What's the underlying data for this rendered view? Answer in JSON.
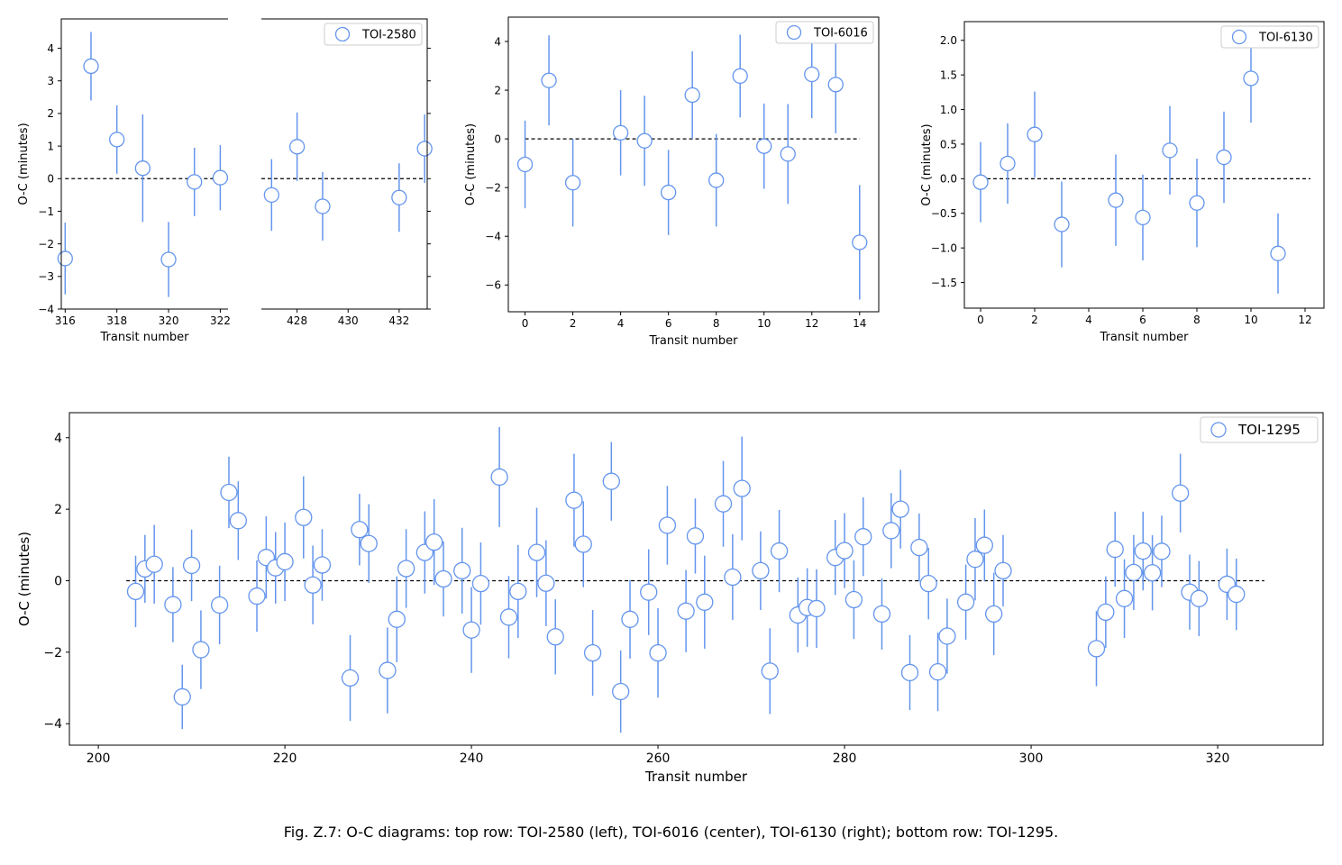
{
  "caption": "Fig. Z.7: O-C diagrams: top row: TOI-2580 (left), TOI-6016 (center), TOI-6130 (right); bottom row: TOI-1295.",
  "colors": {
    "marker": "#6495ED",
    "axis": "#000000",
    "reference_line": "#000000"
  },
  "chart_data": [
    {
      "type": "scatter",
      "panel": "top-left",
      "broken_x_axis": true,
      "legend": {
        "label": "TOI-2580",
        "placement": "top-right"
      },
      "xlabel": "Transit number",
      "ylabel": "O-C (minutes)",
      "ylim": [
        -4.0,
        4.9
      ],
      "yticks": [
        -4,
        -3,
        -2,
        -1,
        0,
        1,
        2,
        3,
        4
      ],
      "segments": [
        {
          "xlim": [
            315.85,
            322.3
          ],
          "xticks": [
            316,
            318,
            320,
            322
          ]
        },
        {
          "xlim": [
            426.6,
            433.1
          ],
          "xticks": [
            428,
            430,
            432
          ]
        }
      ],
      "reference_line": {
        "y": 0,
        "x_range": [
          316,
          433
        ]
      },
      "series": [
        {
          "points": [
            {
              "x": 316,
              "y": -2.45,
              "err": 1.1
            },
            {
              "x": 317,
              "y": 3.45,
              "err": 1.05
            },
            {
              "x": 318,
              "y": 1.2,
              "err": 1.05
            },
            {
              "x": 319,
              "y": 0.32,
              "err": 1.65
            },
            {
              "x": 320,
              "y": -2.48,
              "err": 1.15
            },
            {
              "x": 321,
              "y": -0.1,
              "err": 1.05
            },
            {
              "x": 322,
              "y": 0.03,
              "err": 1.0
            },
            {
              "x": 427,
              "y": -0.5,
              "err": 1.1
            },
            {
              "x": 428,
              "y": 0.98,
              "err": 1.05
            },
            {
              "x": 429,
              "y": -0.85,
              "err": 1.05
            },
            {
              "x": 432,
              "y": -0.58,
              "err": 1.05
            },
            {
              "x": 433,
              "y": 0.92,
              "err": 1.05
            }
          ]
        }
      ]
    },
    {
      "type": "scatter",
      "panel": "top-center",
      "legend": {
        "label": "TOI-6016",
        "placement": "top-right"
      },
      "xlabel": "Transit number",
      "ylabel": "O-C (minutes)",
      "xlim": [
        -0.7,
        14.8
      ],
      "ylim": [
        -7.1,
        5.0
      ],
      "xticks": [
        0,
        2,
        4,
        6,
        8,
        10,
        12,
        14
      ],
      "yticks": [
        -6,
        -4,
        -2,
        0,
        2,
        4
      ],
      "reference_line": {
        "y": 0,
        "x_range": [
          0,
          14
        ]
      },
      "series": [
        {
          "points": [
            {
              "x": 0,
              "y": -1.05,
              "err": 1.8
            },
            {
              "x": 1,
              "y": 2.4,
              "err": 1.85
            },
            {
              "x": 2,
              "y": -1.8,
              "err": 1.8
            },
            {
              "x": 4,
              "y": 0.25,
              "err": 1.75
            },
            {
              "x": 5,
              "y": -0.08,
              "err": 1.85
            },
            {
              "x": 6,
              "y": -2.2,
              "err": 1.75
            },
            {
              "x": 7,
              "y": 1.8,
              "err": 1.8
            },
            {
              "x": 8,
              "y": -1.7,
              "err": 1.9
            },
            {
              "x": 9,
              "y": 2.58,
              "err": 1.7
            },
            {
              "x": 10,
              "y": -0.3,
              "err": 1.75
            },
            {
              "x": 11,
              "y": -0.62,
              "err": 2.05
            },
            {
              "x": 12,
              "y": 2.65,
              "err": 1.8
            },
            {
              "x": 13,
              "y": 2.23,
              "err": 2.0
            },
            {
              "x": 14,
              "y": -4.25,
              "err": 2.35
            }
          ]
        }
      ]
    },
    {
      "type": "scatter",
      "panel": "top-right",
      "legend": {
        "label": "TOI-6130",
        "placement": "top-right"
      },
      "xlabel": "Transit number",
      "ylabel": "O-C (minutes)",
      "xlim": [
        -0.6,
        12.7
      ],
      "ylim": [
        -1.87,
        2.27
      ],
      "xticks": [
        0,
        2,
        4,
        6,
        8,
        10,
        12
      ],
      "yticks": [
        -1.5,
        -1.0,
        -0.5,
        0.0,
        0.5,
        1.0,
        1.5,
        2.0
      ],
      "ytick_labels": [
        "−1.5",
        "−1.0",
        "−0.5",
        "0.0",
        "0.5",
        "1.0",
        "1.5",
        "2.0"
      ],
      "reference_line": {
        "y": 0,
        "x_range": [
          0,
          12.2
        ]
      },
      "series": [
        {
          "points": [
            {
              "x": 0,
              "y": -0.05,
              "err": 0.58
            },
            {
              "x": 1,
              "y": 0.22,
              "err": 0.58
            },
            {
              "x": 2,
              "y": 0.64,
              "err": 0.62
            },
            {
              "x": 3,
              "y": -0.66,
              "err": 0.62
            },
            {
              "x": 5,
              "y": -0.31,
              "err": 0.66
            },
            {
              "x": 6,
              "y": -0.56,
              "err": 0.62
            },
            {
              "x": 7,
              "y": 0.41,
              "err": 0.64
            },
            {
              "x": 8,
              "y": -0.35,
              "err": 0.64
            },
            {
              "x": 9,
              "y": 0.31,
              "err": 0.66
            },
            {
              "x": 10,
              "y": 1.45,
              "err": 0.64
            },
            {
              "x": 11,
              "y": -1.08,
              "err": 0.58
            }
          ]
        }
      ]
    },
    {
      "type": "scatter",
      "panel": "bottom",
      "legend": {
        "label": "TOI-1295",
        "placement": "top-right"
      },
      "xlabel": "Transit number",
      "ylabel": "O-C (minutes)",
      "xlim": [
        196.9,
        331.3
      ],
      "ylim": [
        -4.6,
        4.7
      ],
      "xticks": [
        200,
        220,
        240,
        260,
        280,
        300,
        320
      ],
      "yticks": [
        -4,
        -2,
        0,
        2,
        4
      ],
      "reference_line": {
        "y": 0,
        "x_range": [
          203,
          325
        ]
      },
      "series": [
        {
          "points": [
            {
              "x": 204,
              "y": -0.3,
              "err": 1.0
            },
            {
              "x": 205,
              "y": 0.33,
              "err": 0.95
            },
            {
              "x": 206,
              "y": 0.46,
              "err": 1.1
            },
            {
              "x": 208,
              "y": -0.67,
              "err": 1.05
            },
            {
              "x": 209,
              "y": -3.25,
              "err": 0.9
            },
            {
              "x": 210,
              "y": 0.43,
              "err": 1.0
            },
            {
              "x": 211,
              "y": -1.93,
              "err": 1.1
            },
            {
              "x": 213,
              "y": -0.68,
              "err": 1.1
            },
            {
              "x": 214,
              "y": 2.47,
              "err": 1.0
            },
            {
              "x": 215,
              "y": 1.68,
              "err": 1.1
            },
            {
              "x": 217,
              "y": -0.43,
              "err": 1.0
            },
            {
              "x": 218,
              "y": 0.65,
              "err": 1.15
            },
            {
              "x": 219,
              "y": 0.36,
              "err": 1.0
            },
            {
              "x": 220,
              "y": 0.53,
              "err": 1.1
            },
            {
              "x": 222,
              "y": 1.77,
              "err": 1.15
            },
            {
              "x": 223,
              "y": -0.12,
              "err": 1.1
            },
            {
              "x": 224,
              "y": 0.44,
              "err": 1.0
            },
            {
              "x": 227,
              "y": -2.72,
              "err": 1.2
            },
            {
              "x": 228,
              "y": 1.43,
              "err": 1.0
            },
            {
              "x": 229,
              "y": 1.04,
              "err": 1.1
            },
            {
              "x": 231,
              "y": -2.51,
              "err": 1.2
            },
            {
              "x": 232,
              "y": -1.08,
              "err": 1.2
            },
            {
              "x": 233,
              "y": 0.34,
              "err": 1.1
            },
            {
              "x": 235,
              "y": 0.79,
              "err": 1.15
            },
            {
              "x": 236,
              "y": 1.08,
              "err": 1.2
            },
            {
              "x": 237,
              "y": 0.05,
              "err": 1.05
            },
            {
              "x": 239,
              "y": 0.28,
              "err": 1.2
            },
            {
              "x": 240,
              "y": -1.38,
              "err": 1.2
            },
            {
              "x": 241,
              "y": -0.08,
              "err": 1.15
            },
            {
              "x": 243,
              "y": 2.9,
              "err": 1.4
            },
            {
              "x": 244,
              "y": -1.02,
              "err": 1.15
            },
            {
              "x": 245,
              "y": -0.3,
              "err": 1.3
            },
            {
              "x": 247,
              "y": 0.79,
              "err": 1.25
            },
            {
              "x": 248,
              "y": -0.07,
              "err": 1.2
            },
            {
              "x": 249,
              "y": -1.57,
              "err": 1.05
            },
            {
              "x": 251,
              "y": 2.25,
              "err": 1.3
            },
            {
              "x": 252,
              "y": 1.02,
              "err": 1.2
            },
            {
              "x": 253,
              "y": -2.02,
              "err": 1.2
            },
            {
              "x": 255,
              "y": 2.78,
              "err": 1.1
            },
            {
              "x": 256,
              "y": -3.1,
              "err": 1.15
            },
            {
              "x": 257,
              "y": -1.08,
              "err": 1.1
            },
            {
              "x": 259,
              "y": -0.32,
              "err": 1.2
            },
            {
              "x": 260,
              "y": -2.02,
              "err": 1.25
            },
            {
              "x": 261,
              "y": 1.55,
              "err": 1.1
            },
            {
              "x": 263,
              "y": -0.85,
              "err": 1.15
            },
            {
              "x": 264,
              "y": 1.25,
              "err": 1.05
            },
            {
              "x": 265,
              "y": -0.6,
              "err": 1.3
            },
            {
              "x": 267,
              "y": 2.15,
              "err": 1.2
            },
            {
              "x": 268,
              "y": 0.1,
              "err": 1.2
            },
            {
              "x": 269,
              "y": 2.58,
              "err": 1.45
            },
            {
              "x": 271,
              "y": 0.28,
              "err": 1.1
            },
            {
              "x": 272,
              "y": -2.53,
              "err": 1.2
            },
            {
              "x": 273,
              "y": 0.83,
              "err": 1.15
            },
            {
              "x": 275,
              "y": -0.96,
              "err": 1.05
            },
            {
              "x": 276,
              "y": -0.75,
              "err": 1.1
            },
            {
              "x": 277,
              "y": -0.78,
              "err": 1.1
            },
            {
              "x": 279,
              "y": 0.65,
              "err": 1.05
            },
            {
              "x": 280,
              "y": 0.84,
              "err": 1.05
            },
            {
              "x": 281,
              "y": -0.53,
              "err": 1.1
            },
            {
              "x": 282,
              "y": 1.23,
              "err": 1.1
            },
            {
              "x": 284,
              "y": -0.93,
              "err": 1.0
            },
            {
              "x": 285,
              "y": 1.4,
              "err": 1.05
            },
            {
              "x": 286,
              "y": 2.0,
              "err": 1.1
            },
            {
              "x": 287,
              "y": -2.57,
              "err": 1.05
            },
            {
              "x": 288,
              "y": 0.93,
              "err": 0.95
            },
            {
              "x": 289,
              "y": -0.08,
              "err": 1.0
            },
            {
              "x": 290,
              "y": -2.55,
              "err": 1.1
            },
            {
              "x": 291,
              "y": -1.55,
              "err": 1.05
            },
            {
              "x": 293,
              "y": -0.6,
              "err": 1.05
            },
            {
              "x": 294,
              "y": 0.6,
              "err": 1.15
            },
            {
              "x": 295,
              "y": 0.99,
              "err": 1.0
            },
            {
              "x": 296,
              "y": -0.93,
              "err": 1.15
            },
            {
              "x": 297,
              "y": 0.28,
              "err": 1.0
            },
            {
              "x": 307,
              "y": -1.9,
              "err": 1.05
            },
            {
              "x": 308,
              "y": -0.88,
              "err": 1.0
            },
            {
              "x": 309,
              "y": 0.88,
              "err": 1.05
            },
            {
              "x": 310,
              "y": -0.5,
              "err": 1.1
            },
            {
              "x": 311,
              "y": 0.23,
              "err": 1.05
            },
            {
              "x": 312,
              "y": 0.83,
              "err": 1.1
            },
            {
              "x": 313,
              "y": 0.22,
              "err": 1.05
            },
            {
              "x": 314,
              "y": 0.82,
              "err": 1.0
            },
            {
              "x": 316,
              "y": 2.45,
              "err": 1.1
            },
            {
              "x": 317,
              "y": -0.32,
              "err": 1.05
            },
            {
              "x": 318,
              "y": -0.5,
              "err": 1.05
            },
            {
              "x": 321,
              "y": -0.1,
              "err": 1.0
            },
            {
              "x": 322,
              "y": -0.38,
              "err": 1.0
            }
          ]
        }
      ]
    }
  ]
}
